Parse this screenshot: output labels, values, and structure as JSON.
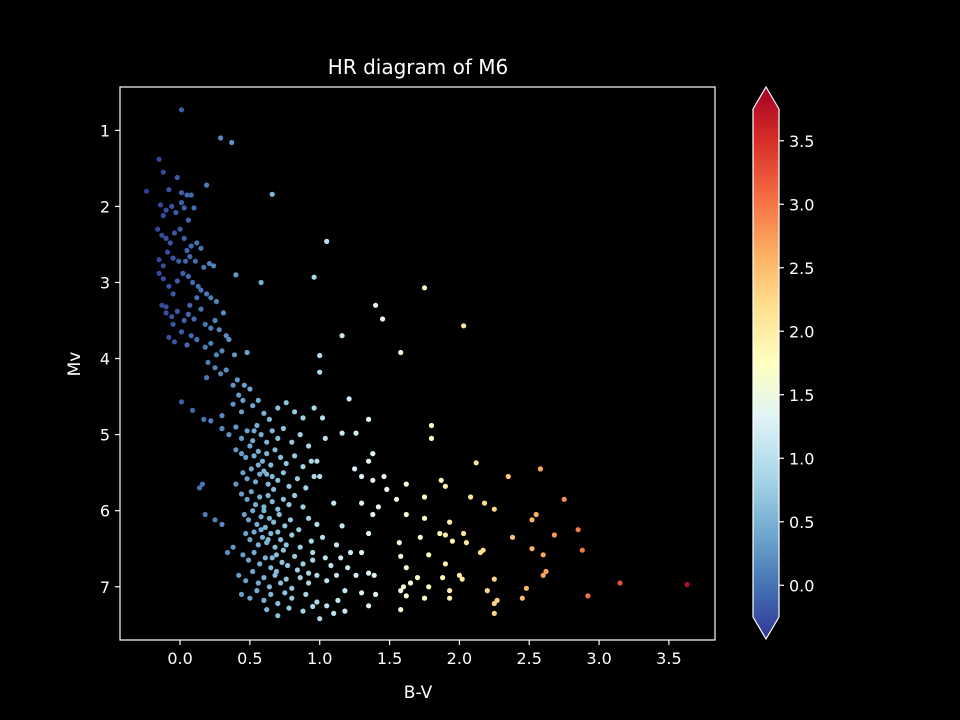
{
  "chart_data": {
    "type": "scatter",
    "title": "HR diagram of M6",
    "xlabel": "B-V",
    "ylabel": "Mv",
    "xlim": [
      -0.43,
      3.83
    ],
    "ylim": [
      7.7,
      0.43
    ],
    "y_inverted": true,
    "x_ticks": [
      "0.0",
      "0.5",
      "1.0",
      "1.5",
      "2.0",
      "2.5",
      "3.0",
      "3.5"
    ],
    "y_ticks": [
      "1",
      "2",
      "3",
      "4",
      "5",
      "6",
      "7"
    ],
    "colorbar": {
      "colormap": "RdYlBu_r",
      "range": [
        -0.25,
        3.75
      ],
      "extend": "both",
      "ticks": [
        "0.0",
        "0.5",
        "1.0",
        "1.5",
        "2.0",
        "2.5",
        "3.0",
        "3.5"
      ],
      "stops": [
        "#313695",
        "#4575b4",
        "#74add1",
        "#abd9e9",
        "#e0f3f8",
        "#ffffbf",
        "#fee090",
        "#fdae61",
        "#f46d43",
        "#d73027",
        "#a50026"
      ]
    },
    "points": [
      [
        0.01,
        0.73
      ],
      [
        0.29,
        1.1
      ],
      [
        0.37,
        1.16
      ],
      [
        0.66,
        1.84
      ],
      [
        -0.15,
        1.38
      ],
      [
        -0.24,
        1.8
      ],
      [
        -0.12,
        1.55
      ],
      [
        -0.08,
        1.78
      ],
      [
        -0.02,
        1.62
      ],
      [
        0.01,
        1.82
      ],
      [
        0.05,
        1.85
      ],
      [
        0.08,
        1.85
      ],
      [
        0.19,
        1.72
      ],
      [
        -0.14,
        1.98
      ],
      [
        -0.12,
        2.12
      ],
      [
        -0.1,
        2.05
      ],
      [
        -0.06,
        2.0
      ],
      [
        -0.03,
        2.08
      ],
      [
        0.01,
        1.95
      ],
      [
        0.03,
        2.02
      ],
      [
        0.06,
        2.18
      ],
      [
        0.1,
        2.02
      ],
      [
        -0.16,
        2.3
      ],
      [
        -0.13,
        2.38
      ],
      [
        -0.1,
        2.42
      ],
      [
        -0.07,
        2.48
      ],
      [
        -0.04,
        2.35
      ],
      [
        0.0,
        2.3
      ],
      [
        0.03,
        2.42
      ],
      [
        0.05,
        2.58
      ],
      [
        0.08,
        2.52
      ],
      [
        0.12,
        2.48
      ],
      [
        0.15,
        2.55
      ],
      [
        -0.15,
        2.7
      ],
      [
        -0.12,
        2.78
      ],
      [
        -0.09,
        2.6
      ],
      [
        -0.05,
        2.68
      ],
      [
        -0.01,
        2.72
      ],
      [
        0.04,
        2.72
      ],
      [
        0.07,
        2.66
      ],
      [
        0.11,
        2.72
      ],
      [
        0.17,
        2.8
      ],
      [
        0.21,
        2.75
      ],
      [
        0.24,
        2.78
      ],
      [
        -0.15,
        2.88
      ],
      [
        -0.12,
        2.95
      ],
      [
        -0.08,
        3.05
      ],
      [
        -0.05,
        3.15
      ],
      [
        -0.02,
        2.98
      ],
      [
        0.02,
        2.88
      ],
      [
        0.06,
        2.92
      ],
      [
        0.09,
        3.0
      ],
      [
        0.13,
        3.05
      ],
      [
        0.15,
        3.1
      ],
      [
        0.19,
        3.15
      ],
      [
        0.22,
        3.2
      ],
      [
        0.26,
        3.25
      ],
      [
        0.4,
        2.9
      ],
      [
        0.58,
        3.0
      ],
      [
        0.96,
        2.93
      ],
      [
        -0.13,
        3.3
      ],
      [
        -0.1,
        3.4
      ],
      [
        -0.06,
        3.45
      ],
      [
        -0.02,
        3.38
      ],
      [
        0.03,
        3.5
      ],
      [
        0.06,
        3.42
      ],
      [
        0.1,
        3.48
      ],
      [
        0.15,
        3.35
      ],
      [
        0.18,
        3.55
      ],
      [
        0.22,
        3.6
      ],
      [
        0.25,
        3.5
      ],
      [
        0.31,
        3.4
      ],
      [
        -0.08,
        3.72
      ],
      [
        -0.04,
        3.78
      ],
      [
        0.01,
        3.65
      ],
      [
        0.05,
        3.82
      ],
      [
        0.08,
        3.7
      ],
      [
        0.12,
        3.75
      ],
      [
        0.18,
        3.85
      ],
      [
        0.22,
        3.8
      ],
      [
        0.26,
        3.95
      ],
      [
        0.3,
        3.9
      ],
      [
        0.35,
        3.75
      ],
      [
        0.39,
        3.95
      ],
      [
        0.48,
        3.92
      ],
      [
        0.2,
        4.05
      ],
      [
        0.25,
        4.12
      ],
      [
        0.29,
        4.2
      ],
      [
        0.33,
        4.15
      ],
      [
        0.38,
        4.35
      ],
      [
        0.42,
        4.48
      ],
      [
        0.45,
        4.55
      ],
      [
        0.5,
        4.4
      ],
      [
        0.19,
        4.25
      ],
      [
        0.01,
        4.57
      ],
      [
        0.09,
        4.68
      ],
      [
        0.17,
        4.8
      ],
      [
        0.22,
        4.82
      ],
      [
        0.3,
        4.75
      ],
      [
        0.38,
        4.6
      ],
      [
        0.44,
        4.7
      ],
      [
        0.52,
        4.62
      ],
      [
        0.56,
        4.55
      ],
      [
        0.6,
        4.72
      ],
      [
        0.64,
        4.8
      ],
      [
        0.7,
        4.65
      ],
      [
        0.76,
        4.58
      ],
      [
        0.82,
        4.7
      ],
      [
        0.88,
        4.78
      ],
      [
        0.96,
        4.65
      ],
      [
        1.02,
        4.78
      ],
      [
        0.3,
        4.92
      ],
      [
        0.35,
        5.0
      ],
      [
        0.4,
        4.9
      ],
      [
        0.44,
        5.05
      ],
      [
        0.48,
        4.95
      ],
      [
        0.52,
        5.08
      ],
      [
        0.55,
        4.88
      ],
      [
        0.58,
        5.0
      ],
      [
        0.62,
        5.1
      ],
      [
        0.66,
        4.95
      ],
      [
        0.7,
        5.05
      ],
      [
        0.74,
        4.92
      ],
      [
        0.8,
        5.1
      ],
      [
        0.86,
        5.0
      ],
      [
        0.92,
        5.15
      ],
      [
        0.4,
        5.2
      ],
      [
        0.44,
        5.25
      ],
      [
        0.47,
        5.3
      ],
      [
        0.5,
        5.15
      ],
      [
        0.53,
        5.28
      ],
      [
        0.56,
        5.22
      ],
      [
        0.59,
        5.35
      ],
      [
        0.62,
        5.25
      ],
      [
        0.65,
        5.4
      ],
      [
        0.68,
        5.2
      ],
      [
        0.72,
        5.3
      ],
      [
        0.76,
        5.38
      ],
      [
        0.82,
        5.28
      ],
      [
        0.88,
        5.42
      ],
      [
        0.94,
        5.35
      ],
      [
        0.45,
        5.5
      ],
      [
        0.48,
        5.58
      ],
      [
        0.51,
        5.45
      ],
      [
        0.54,
        5.62
      ],
      [
        0.57,
        5.52
      ],
      [
        0.6,
        5.48
      ],
      [
        0.63,
        5.65
      ],
      [
        0.66,
        5.55
      ],
      [
        0.7,
        5.6
      ],
      [
        0.74,
        5.5
      ],
      [
        0.78,
        5.68
      ],
      [
        0.84,
        5.58
      ],
      [
        0.9,
        5.7
      ],
      [
        0.96,
        5.55
      ],
      [
        0.44,
        5.78
      ],
      [
        0.48,
        5.85
      ],
      [
        0.51,
        5.75
      ],
      [
        0.54,
        5.92
      ],
      [
        0.57,
        5.82
      ],
      [
        0.6,
        5.95
      ],
      [
        0.63,
        5.8
      ],
      [
        0.66,
        5.88
      ],
      [
        0.7,
        5.98
      ],
      [
        0.74,
        5.85
      ],
      [
        0.78,
        5.92
      ],
      [
        0.82,
        5.8
      ],
      [
        0.88,
        5.95
      ],
      [
        0.46,
        6.05
      ],
      [
        0.49,
        6.12
      ],
      [
        0.52,
        6.0
      ],
      [
        0.55,
        6.18
      ],
      [
        0.58,
        6.08
      ],
      [
        0.61,
        6.22
      ],
      [
        0.64,
        6.1
      ],
      [
        0.67,
        6.15
      ],
      [
        0.71,
        6.05
      ],
      [
        0.75,
        6.2
      ],
      [
        0.79,
        6.12
      ],
      [
        0.85,
        6.25
      ],
      [
        0.92,
        6.1
      ],
      [
        0.98,
        6.18
      ],
      [
        0.47,
        6.3
      ],
      [
        0.5,
        6.38
      ],
      [
        0.53,
        6.28
      ],
      [
        0.56,
        6.45
      ],
      [
        0.59,
        6.35
      ],
      [
        0.62,
        6.42
      ],
      [
        0.65,
        6.3
      ],
      [
        0.68,
        6.48
      ],
      [
        0.72,
        6.38
      ],
      [
        0.76,
        6.45
      ],
      [
        0.8,
        6.32
      ],
      [
        0.86,
        6.48
      ],
      [
        0.94,
        6.4
      ],
      [
        1.02,
        6.35
      ],
      [
        0.45,
        6.58
      ],
      [
        0.49,
        6.65
      ],
      [
        0.53,
        6.55
      ],
      [
        0.57,
        6.7
      ],
      [
        0.61,
        6.62
      ],
      [
        0.65,
        6.75
      ],
      [
        0.69,
        6.58
      ],
      [
        0.73,
        6.68
      ],
      [
        0.77,
        6.72
      ],
      [
        0.82,
        6.6
      ],
      [
        0.88,
        6.7
      ],
      [
        0.95,
        6.65
      ],
      [
        1.04,
        6.62
      ],
      [
        0.42,
        6.85
      ],
      [
        0.47,
        6.92
      ],
      [
        0.52,
        6.8
      ],
      [
        0.56,
        6.95
      ],
      [
        0.6,
        6.88
      ],
      [
        0.64,
        7.0
      ],
      [
        0.68,
        6.85
      ],
      [
        0.72,
        6.95
      ],
      [
        0.76,
        6.9
      ],
      [
        0.8,
        7.02
      ],
      [
        0.86,
        6.88
      ],
      [
        0.92,
        6.95
      ],
      [
        0.98,
        6.85
      ],
      [
        1.05,
        6.92
      ],
      [
        0.44,
        7.1
      ],
      [
        0.5,
        7.15
      ],
      [
        0.55,
        7.05
      ],
      [
        0.6,
        7.18
      ],
      [
        0.65,
        7.1
      ],
      [
        0.7,
        7.22
      ],
      [
        0.75,
        7.08
      ],
      [
        0.8,
        7.15
      ],
      [
        0.9,
        7.1
      ],
      [
        0.98,
        7.2
      ],
      [
        1.05,
        7.25
      ],
      [
        1.13,
        7.18
      ],
      [
        0.62,
        7.3
      ],
      [
        0.7,
        7.38
      ],
      [
        0.78,
        7.28
      ],
      [
        0.88,
        7.32
      ],
      [
        0.95,
        7.26
      ],
      [
        1.0,
        7.42
      ],
      [
        1.1,
        7.35
      ],
      [
        1.18,
        7.32
      ],
      [
        0.14,
        5.7
      ],
      [
        0.16,
        5.65
      ],
      [
        0.18,
        6.05
      ],
      [
        0.25,
        6.12
      ],
      [
        0.3,
        6.18
      ],
      [
        0.34,
        6.55
      ],
      [
        0.38,
        6.48
      ],
      [
        0.4,
        5.65
      ],
      [
        1.05,
        2.46
      ],
      [
        1.0,
        3.96
      ],
      [
        1.0,
        4.18
      ],
      [
        1.16,
        3.7
      ],
      [
        1.21,
        4.53
      ],
      [
        0.98,
        5.35
      ],
      [
        1.04,
        5.05
      ],
      [
        1.0,
        5.55
      ],
      [
        1.16,
        4.98
      ],
      [
        1.26,
        4.98
      ],
      [
        1.35,
        4.8
      ],
      [
        1.38,
        5.25
      ],
      [
        1.35,
        5.35
      ],
      [
        1.3,
        5.55
      ],
      [
        1.25,
        5.45
      ],
      [
        1.38,
        5.6
      ],
      [
        1.1,
        5.9
      ],
      [
        1.16,
        6.2
      ],
      [
        1.3,
        5.9
      ],
      [
        1.38,
        6.05
      ],
      [
        1.35,
        6.3
      ],
      [
        1.22,
        6.55
      ],
      [
        1.15,
        6.62
      ],
      [
        1.3,
        6.55
      ],
      [
        1.2,
        6.75
      ],
      [
        1.12,
        6.85
      ],
      [
        1.26,
        6.85
      ],
      [
        1.3,
        7.08
      ],
      [
        1.18,
        7.05
      ],
      [
        1.35,
        6.82
      ],
      [
        1.39,
        6.85
      ],
      [
        1.4,
        7.1
      ],
      [
        1.35,
        7.25
      ],
      [
        1.4,
        3.3
      ],
      [
        1.45,
        3.48
      ],
      [
        1.58,
        3.92
      ],
      [
        1.46,
        5.55
      ],
      [
        1.48,
        5.72
      ],
      [
        1.55,
        5.85
      ],
      [
        1.42,
        5.95
      ],
      [
        1.62,
        5.65
      ],
      [
        1.62,
        6.05
      ],
      [
        1.57,
        6.42
      ],
      [
        1.58,
        6.6
      ],
      [
        1.62,
        6.75
      ],
      [
        1.6,
        7.0
      ],
      [
        1.58,
        7.05
      ],
      [
        1.65,
        6.95
      ],
      [
        1.7,
        6.88
      ],
      [
        1.62,
        7.12
      ],
      [
        1.58,
        7.3
      ],
      [
        1.75,
        3.07
      ],
      [
        1.8,
        4.88
      ],
      [
        1.8,
        5.05
      ],
      [
        1.87,
        5.6
      ],
      [
        1.9,
        5.68
      ],
      [
        1.75,
        5.82
      ],
      [
        1.75,
        6.1
      ],
      [
        1.72,
        6.35
      ],
      [
        1.78,
        6.58
      ],
      [
        1.78,
        7.0
      ],
      [
        1.75,
        7.15
      ],
      [
        1.86,
        6.3
      ],
      [
        1.9,
        6.32
      ],
      [
        1.93,
        6.15
      ],
      [
        1.95,
        6.4
      ],
      [
        1.9,
        6.7
      ],
      [
        1.88,
        6.88
      ],
      [
        1.93,
        7.05
      ],
      [
        1.93,
        7.15
      ],
      [
        2.03,
        3.57
      ],
      [
        2.08,
        5.82
      ],
      [
        2.12,
        5.37
      ],
      [
        2.03,
        6.3
      ],
      [
        2.05,
        6.42
      ],
      [
        2.0,
        6.85
      ],
      [
        2.02,
        6.9
      ],
      [
        2.18,
        5.9
      ],
      [
        2.25,
        5.98
      ],
      [
        2.17,
        6.52
      ],
      [
        2.15,
        6.55
      ],
      [
        2.25,
        6.9
      ],
      [
        2.2,
        7.05
      ],
      [
        2.27,
        7.18
      ],
      [
        2.25,
        7.22
      ],
      [
        2.25,
        7.35
      ],
      [
        2.35,
        5.55
      ],
      [
        2.38,
        6.35
      ],
      [
        2.45,
        7.15
      ],
      [
        2.48,
        7.02
      ],
      [
        2.52,
        6.12
      ],
      [
        2.55,
        6.05
      ],
      [
        2.52,
        6.5
      ],
      [
        2.6,
        6.58
      ],
      [
        2.58,
        5.45
      ],
      [
        2.62,
        6.8
      ],
      [
        2.6,
        6.85
      ],
      [
        2.68,
        6.32
      ],
      [
        2.75,
        5.85
      ],
      [
        2.85,
        6.25
      ],
      [
        2.88,
        6.52
      ],
      [
        2.92,
        7.12
      ],
      [
        3.15,
        6.95
      ],
      [
        3.63,
        6.97
      ],
      [
        -0.1,
        3.32
      ],
      [
        -0.05,
        3.55
      ],
      [
        0.07,
        3.3
      ],
      [
        0.12,
        3.2
      ],
      [
        0.28,
        3.62
      ],
      [
        0.33,
        3.7
      ],
      [
        0.41,
        4.28
      ],
      [
        0.46,
        4.35
      ],
      [
        0.53,
        4.95
      ],
      [
        0.56,
        5.4
      ],
      [
        0.62,
        5.52
      ],
      [
        0.67,
        5.72
      ],
      [
        0.7,
        6.28
      ],
      [
        0.74,
        6.52
      ],
      [
        0.84,
        6.78
      ],
      [
        0.92,
        6.82
      ],
      [
        1.08,
        6.72
      ],
      [
        1.12,
        6.45
      ],
      [
        0.95,
        6.55
      ],
      [
        0.6,
        6.0
      ],
      [
        0.58,
        6.25
      ],
      [
        0.63,
        6.38
      ],
      [
        0.66,
        6.62
      ],
      [
        0.69,
        6.8
      ]
    ]
  }
}
